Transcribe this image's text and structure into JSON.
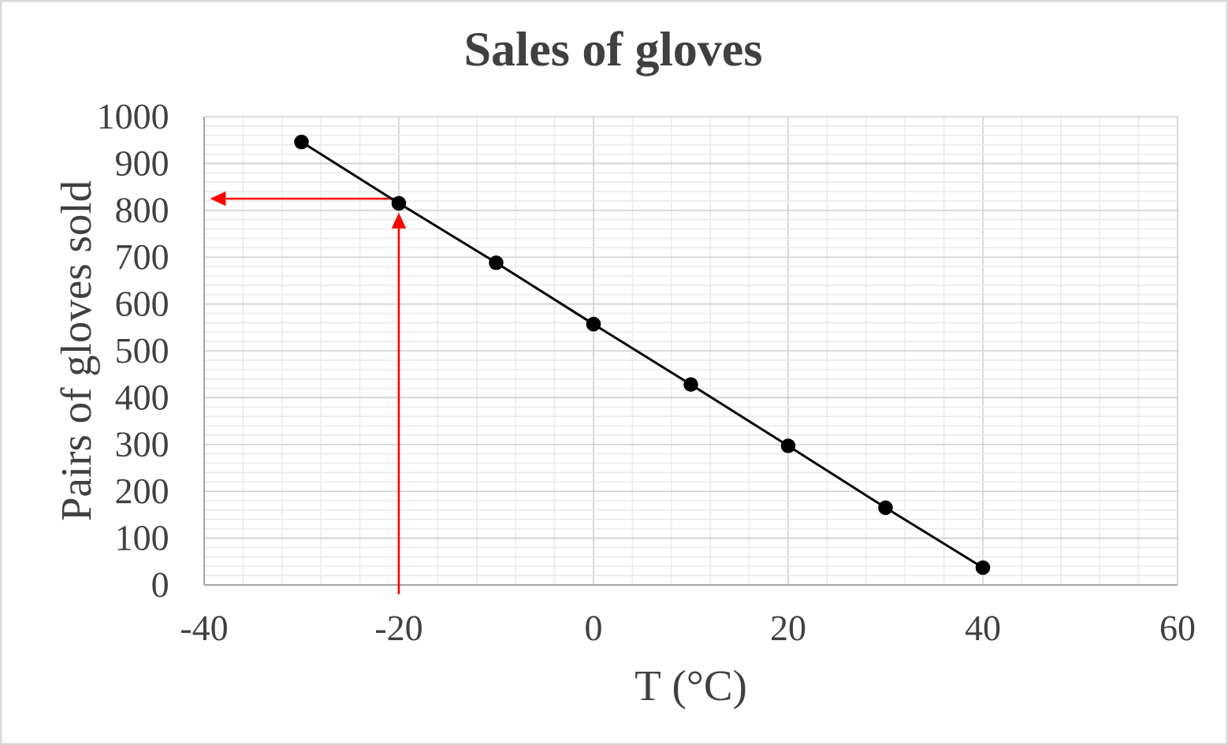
{
  "chart_data": {
    "type": "line",
    "title": "Sales of gloves",
    "xlabel": "T (°C)",
    "ylabel": "Pairs of gloves sold",
    "x": [
      -30,
      -20,
      -10,
      0,
      10,
      20,
      30,
      40
    ],
    "series": [
      {
        "color": "#000000",
        "values": [
          946,
          815,
          688,
          557,
          428,
          297,
          165,
          37
        ]
      }
    ],
    "xlim": [
      -40,
      60
    ],
    "xticks": [
      -40,
      -20,
      0,
      20,
      40,
      60
    ],
    "ylim": [
      0,
      1000
    ],
    "yticks": [
      0,
      100,
      200,
      300,
      400,
      500,
      600,
      700,
      800,
      900,
      1000
    ],
    "grid": true,
    "marker": "circle",
    "line_style": "solid",
    "ref_lines": [
      {
        "axis": "x",
        "value": -20,
        "color": "#ff0000"
      },
      {
        "axis": "y",
        "value": 825,
        "color": "#ff0000"
      }
    ]
  }
}
